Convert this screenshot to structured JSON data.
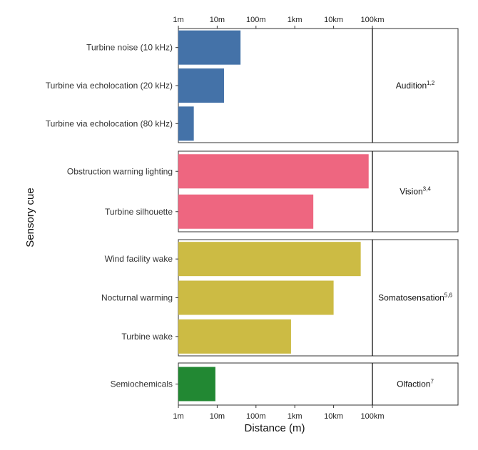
{
  "chart_data": {
    "type": "bar",
    "orientation": "horizontal",
    "xlabel": "Distance (m)",
    "ylabel": "Sensory cue",
    "x_scale": "log10",
    "xlim_m": [
      1,
      100000
    ],
    "x_ticks": [
      {
        "value": 1,
        "label": "1m"
      },
      {
        "value": 10,
        "label": "10m"
      },
      {
        "value": 100,
        "label": "100m"
      },
      {
        "value": 1000,
        "label": "1km"
      },
      {
        "value": 10000,
        "label": "10km"
      },
      {
        "value": 100000,
        "label": "100km"
      }
    ],
    "reference_line_m": 100000,
    "facets": [
      {
        "label": "Audition",
        "sup": "1,2",
        "color": "#4472a8",
        "bars": [
          {
            "label": "Turbine noise (10 kHz)",
            "value_m": 40
          },
          {
            "label": "Turbine via echolocation (20 kHz)",
            "value_m": 15
          },
          {
            "label": "Turbine via echolocation (80 kHz)",
            "value_m": 2.5
          }
        ]
      },
      {
        "label": "Vision",
        "sup": "3,4",
        "color": "#ee6680",
        "bars": [
          {
            "label": "Obstruction warning lighting",
            "value_m": 80000
          },
          {
            "label": "Turbine silhouette",
            "value_m": 3000
          }
        ]
      },
      {
        "label": "Somatosensation",
        "sup": "5,6",
        "color": "#ccbb44",
        "bars": [
          {
            "label": "Wind facility wake",
            "value_m": 50000
          },
          {
            "label": "Nocturnal warming",
            "value_m": 10000
          },
          {
            "label": "Turbine wake",
            "value_m": 800
          }
        ]
      },
      {
        "label": "Olfaction",
        "sup": "7",
        "color": "#228833",
        "bars": [
          {
            "label": "Semiochemicals",
            "value_m": 9
          }
        ]
      }
    ]
  }
}
